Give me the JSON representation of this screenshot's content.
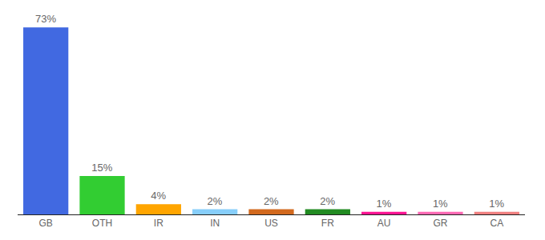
{
  "chart_data": {
    "type": "bar",
    "categories": [
      "GB",
      "OTH",
      "IR",
      "IN",
      "US",
      "FR",
      "AU",
      "GR",
      "CA"
    ],
    "values": [
      73,
      15,
      4,
      2,
      2,
      2,
      1,
      1,
      1
    ],
    "value_labels": [
      "73%",
      "15%",
      "4%",
      "2%",
      "2%",
      "2%",
      "1%",
      "1%",
      "1%"
    ],
    "colors": [
      "#4169e1",
      "#32cd32",
      "#ffa500",
      "#87cefa",
      "#d2691e",
      "#228b22",
      "#ff1493",
      "#ff69b4",
      "#f08080"
    ],
    "data_labels": true,
    "grid": false,
    "tick_labels": "x"
  }
}
